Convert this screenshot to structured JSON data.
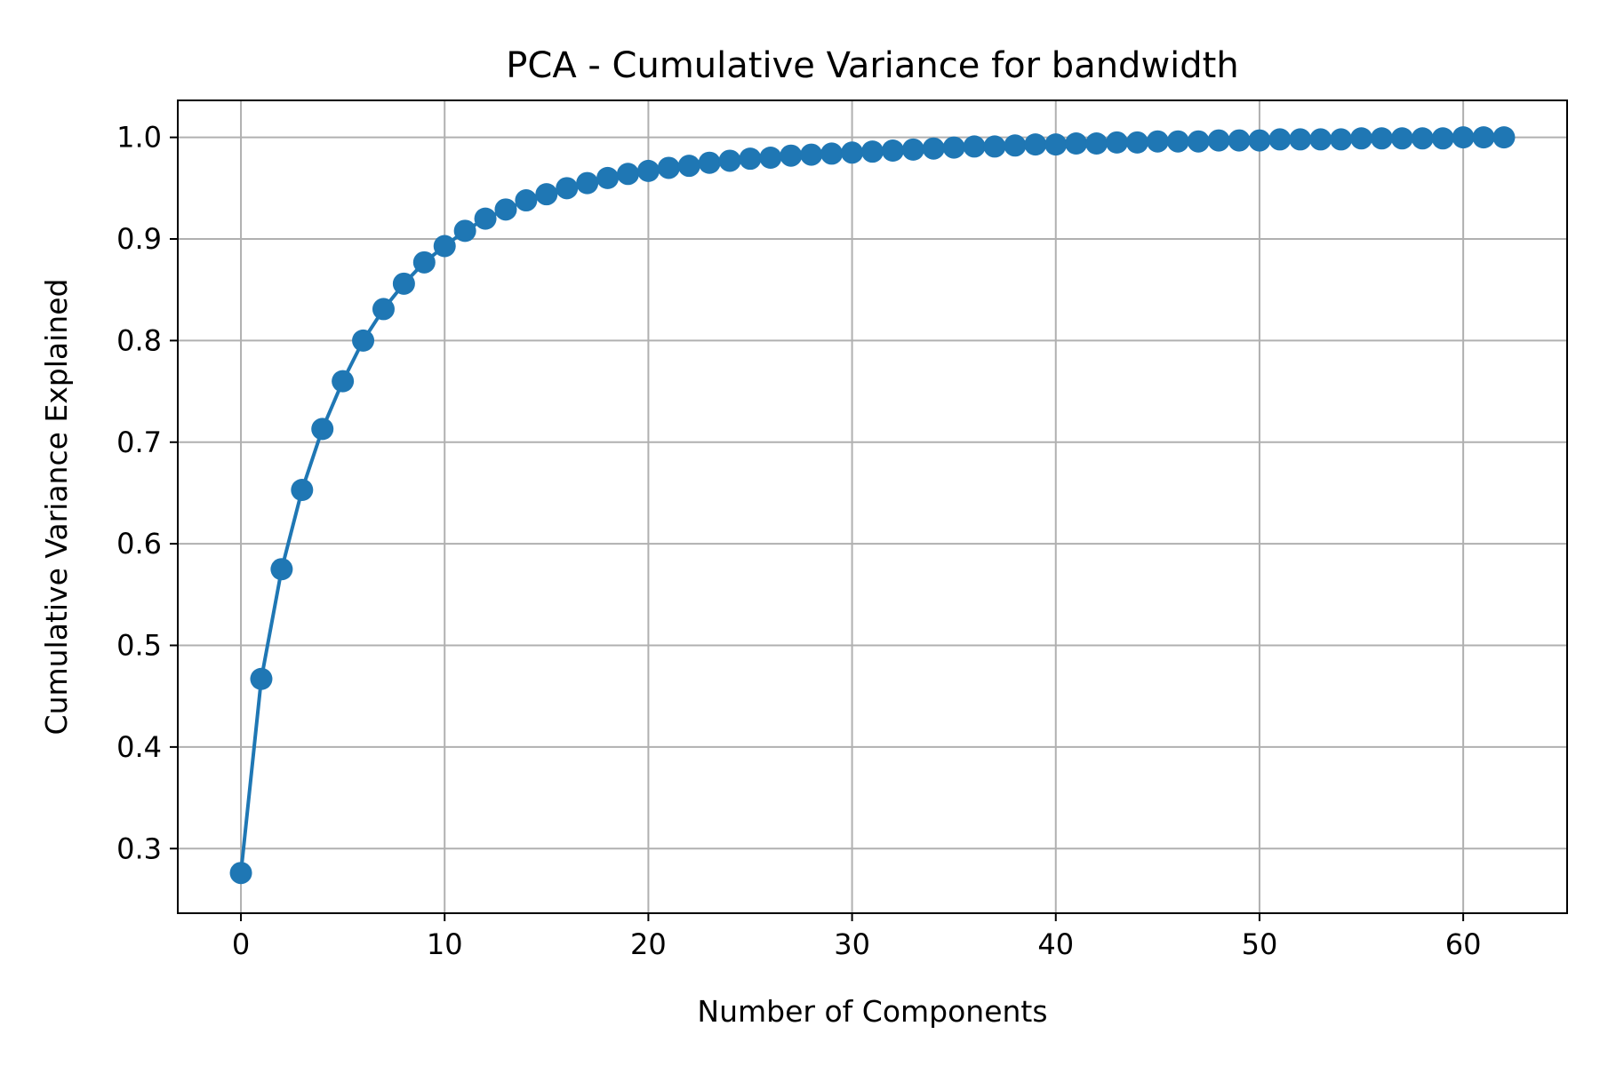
{
  "chart_data": {
    "type": "line",
    "title": "PCA - Cumulative Variance for bandwidth",
    "xlabel": "Number of Components",
    "ylabel": "Cumulative Variance Explained",
    "xlim": [
      -3.1,
      65.1
    ],
    "ylim": [
      0.2364,
      1.0364
    ],
    "xticks": [
      0,
      10,
      20,
      30,
      40,
      50,
      60
    ],
    "xtick_labels": [
      "0",
      "10",
      "20",
      "30",
      "40",
      "50",
      "60"
    ],
    "yticks": [
      0.3,
      0.4,
      0.5,
      0.6,
      0.7,
      0.8,
      0.9,
      1.0
    ],
    "ytick_labels": [
      "0.3",
      "0.4",
      "0.5",
      "0.6",
      "0.7",
      "0.8",
      "0.9",
      "1.0"
    ],
    "grid": true,
    "legend": false,
    "marker": "circle",
    "series": [
      {
        "color": "#1f77b4",
        "x": [
          0,
          1,
          2,
          3,
          4,
          5,
          6,
          7,
          8,
          9,
          10,
          11,
          12,
          13,
          14,
          15,
          16,
          17,
          18,
          19,
          20,
          21,
          22,
          23,
          24,
          25,
          26,
          27,
          28,
          29,
          30,
          31,
          32,
          33,
          34,
          35,
          36,
          37,
          38,
          39,
          40,
          41,
          42,
          43,
          44,
          45,
          46,
          47,
          48,
          49,
          50,
          51,
          52,
          53,
          54,
          55,
          56,
          57,
          58,
          59,
          60,
          61,
          62
        ],
        "values": [
          0.276,
          0.467,
          0.575,
          0.653,
          0.713,
          0.76,
          0.8,
          0.831,
          0.856,
          0.877,
          0.893,
          0.908,
          0.92,
          0.929,
          0.938,
          0.944,
          0.95,
          0.955,
          0.96,
          0.964,
          0.967,
          0.97,
          0.972,
          0.975,
          0.977,
          0.979,
          0.98,
          0.982,
          0.983,
          0.984,
          0.985,
          0.986,
          0.987,
          0.988,
          0.989,
          0.99,
          0.991,
          0.991,
          0.992,
          0.993,
          0.993,
          0.994,
          0.994,
          0.995,
          0.995,
          0.996,
          0.996,
          0.996,
          0.997,
          0.997,
          0.997,
          0.998,
          0.998,
          0.998,
          0.998,
          0.999,
          0.999,
          0.999,
          0.999,
          0.999,
          1.0,
          1.0,
          1.0
        ]
      }
    ]
  }
}
